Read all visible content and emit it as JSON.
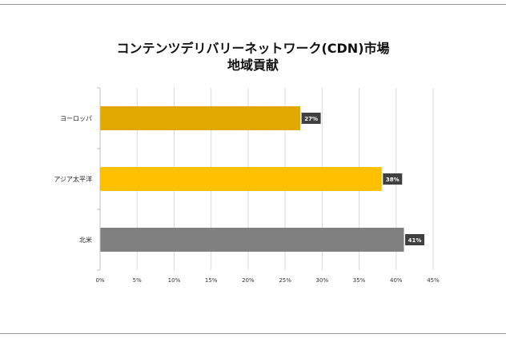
{
  "chart_data": {
    "type": "bar",
    "orientation": "horizontal",
    "title_line1": "コンテンツデリバリーネットワーク(CDN)市場",
    "title_line2": "地域貢献",
    "categories": [
      "ヨーロッパ",
      "アジア太平洋",
      "北米"
    ],
    "values": [
      27,
      38,
      41
    ],
    "data_labels": [
      "27%",
      "38%",
      "41%"
    ],
    "bar_colors": [
      "#e0a800",
      "#ffc000",
      "#808080"
    ],
    "label_box_color": "#404040",
    "xlim": [
      0,
      45
    ],
    "x_ticks": [
      "0%",
      "5%",
      "10%",
      "15%",
      "20%",
      "25%",
      "30%",
      "35%",
      "40%",
      "45%"
    ],
    "grid": true,
    "legend": "none"
  }
}
